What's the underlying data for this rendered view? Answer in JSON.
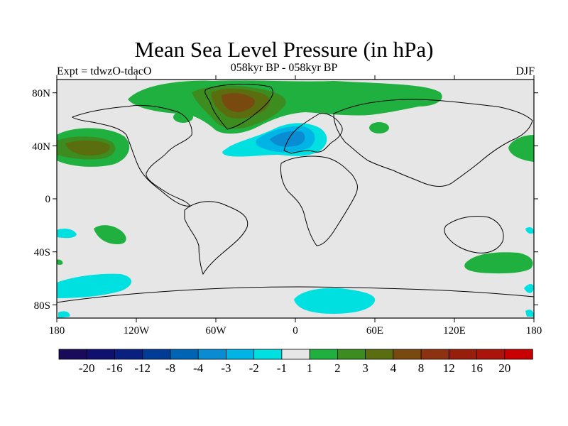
{
  "title": "Mean Sea Level Pressure (in hPa)",
  "subtitle_left": "Expt = tdwzO-tdacO",
  "subtitle_center": "058kyr BP - 058kyr BP",
  "subtitle_right": "DJF",
  "lat_ticks": [
    "80N",
    "40N",
    "0",
    "40S",
    "80S"
  ],
  "lon_ticks": [
    "180",
    "120W",
    "60W",
    "0",
    "60E",
    "120E",
    "180"
  ],
  "colorbar": {
    "colors": [
      "#1a0a5a",
      "#10106e",
      "#0a2080",
      "#003c96",
      "#0064b4",
      "#0a8cd2",
      "#00b4e6",
      "#00e0e0",
      "#e6e6e6",
      "#20b040",
      "#3c8c20",
      "#5a6e10",
      "#784a10",
      "#8c3210",
      "#961e0a",
      "#aa140a",
      "#c80000"
    ],
    "labels": [
      "-20",
      "-16",
      "-12",
      "-8",
      "-4",
      "-3",
      "-2",
      "-1",
      "1",
      "2",
      "3",
      "4",
      "8",
      "12",
      "16",
      "20"
    ]
  },
  "colors": {
    "background": "#e6e6e6",
    "neg_1": "#00e0e0",
    "neg_2": "#00b4e6",
    "neg_3": "#0a8cd2",
    "pos_1": "#20b040",
    "pos_2": "#3c8c20",
    "pos_3": "#5a6e10",
    "pos_4": "#784a10"
  }
}
